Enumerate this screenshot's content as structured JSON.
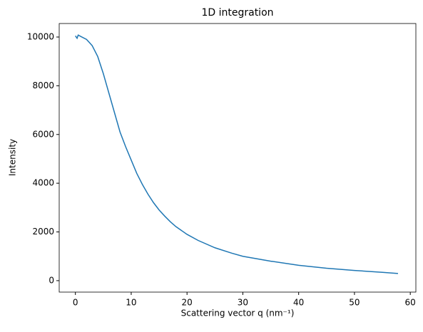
{
  "chart_data": {
    "type": "line",
    "title": "1D integration",
    "xlabel": "Scattering vector q (nm⁻¹)",
    "ylabel": "Intensity",
    "x": [
      0,
      0.3,
      0.5,
      1,
      2,
      3,
      4,
      5,
      6,
      7,
      8,
      9,
      10,
      11,
      12,
      13,
      14,
      15,
      16,
      17,
      18,
      20,
      22,
      25,
      28,
      30,
      35,
      40,
      45,
      50,
      55,
      57.8
    ],
    "series": [
      {
        "name": "Intensity",
        "color": "#1f77b4",
        "values": [
          10050,
          9950,
          10080,
          10020,
          9900,
          9650,
          9200,
          8500,
          7700,
          6900,
          6100,
          5500,
          4950,
          4400,
          3950,
          3550,
          3200,
          2900,
          2650,
          2420,
          2220,
          1900,
          1650,
          1350,
          1130,
          1000,
          800,
          630,
          510,
          420,
          340,
          295
        ]
      }
    ],
    "xlim": [
      -2.9,
      61.0
    ],
    "ylim": [
      -470,
      10555
    ],
    "xticks": [
      0,
      10,
      20,
      30,
      40,
      50,
      60
    ],
    "yticks": [
      0,
      2000,
      4000,
      6000,
      8000,
      10000
    ],
    "grid": false
  }
}
